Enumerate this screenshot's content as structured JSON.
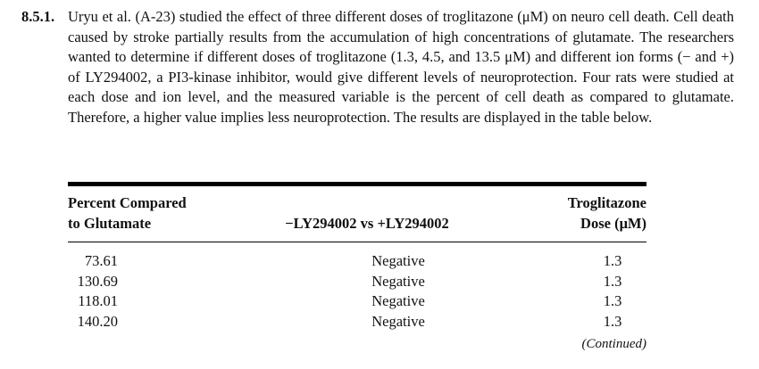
{
  "exercise": {
    "number": "8.5.1.",
    "text": "Uryu et al. (A-23) studied the effect of three different doses of troglitazone (μM) on neuro cell death. Cell death caused by stroke partially results from the accumulation of high concentrations of glutamate. The researchers wanted to determine if different doses of troglitazone (1.3, 4.5, and 13.5 μM) and different ion forms (− and +) of LY294002, a PI3-kinase inhibitor, would give different levels of neuroprotection. Four rats were studied at each dose and ion level, and the measured variable is the percent of cell death as compared to glutamate. Therefore, a higher value implies less neuroprotection. The results are displayed in the table below."
  },
  "table": {
    "headers": {
      "col1_line1": "Percent Compared",
      "col1_line2": "to Glutamate",
      "col2": "−LY294002 vs +LY294002",
      "col3_line1": "Troglitazone",
      "col3_line2": "Dose (μM)"
    },
    "rows": [
      {
        "percent": "73.61",
        "ly": "Negative",
        "dose": "1.3"
      },
      {
        "percent": "130.69",
        "ly": "Negative",
        "dose": "1.3"
      },
      {
        "percent": "118.01",
        "ly": "Negative",
        "dose": "1.3"
      },
      {
        "percent": "140.20",
        "ly": "Negative",
        "dose": "1.3"
      }
    ],
    "continued": "(Continued)"
  }
}
